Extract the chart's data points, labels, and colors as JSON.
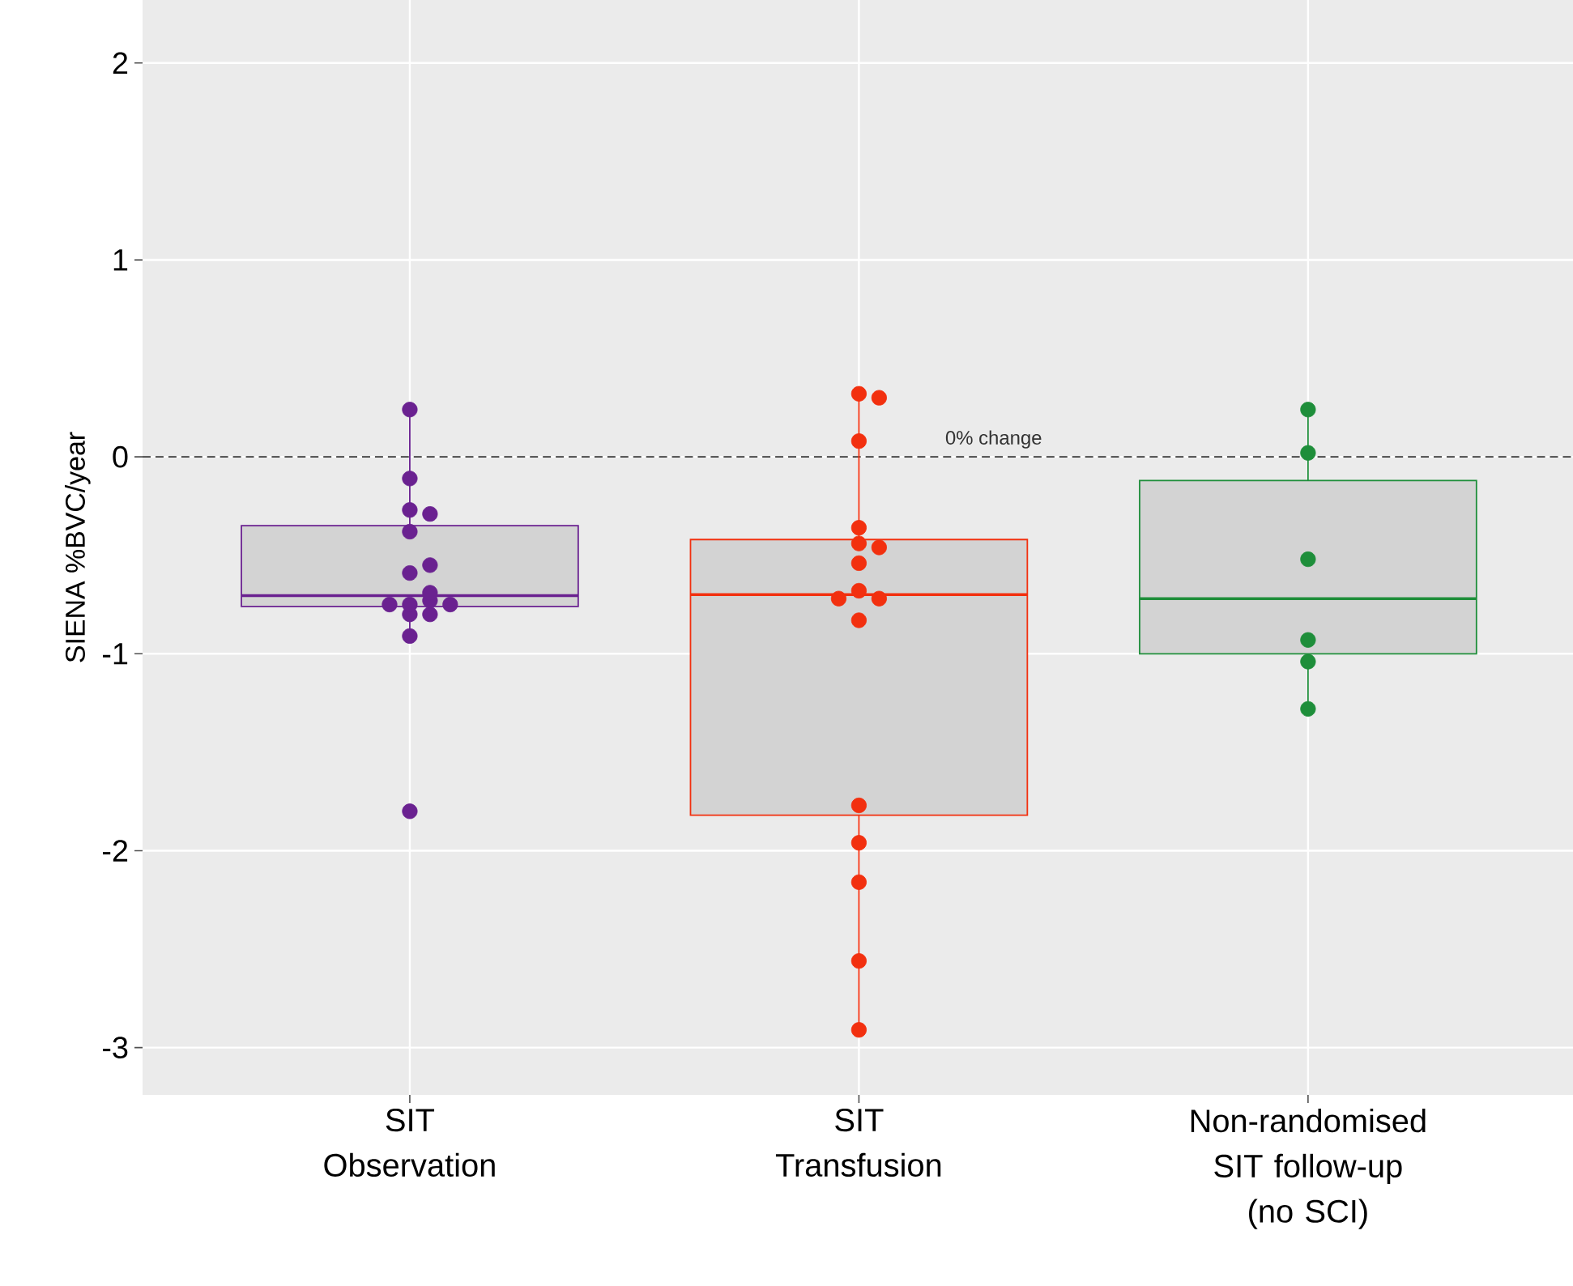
{
  "chart_data": {
    "type": "box",
    "ylabel": "SIENA %BVC/year",
    "categories": [
      "SIT\nObservation",
      "SIT\nTransfusion",
      "Non-randomised\nSIT follow-up\n(no SCI)"
    ],
    "ylim": [
      -3.24,
      2.32
    ],
    "yticks": [
      -3,
      -2,
      -1,
      0,
      1,
      2
    ],
    "grid": true,
    "ref_lines": [
      {
        "axis": "y",
        "value": 0,
        "label": "0% change",
        "color": "#333333",
        "line_style": "dashed"
      }
    ],
    "series": [
      {
        "colors": [
          "#6a2190",
          "#f2300f",
          "#1e8e3a"
        ],
        "boxes": [
          {
            "low": -0.91,
            "q1": -0.76,
            "median": -0.705,
            "q3": -0.35,
            "high": 0.24
          },
          {
            "low": -2.91,
            "q1": -1.82,
            "median": -0.7,
            "q3": -0.42,
            "high": 0.32
          },
          {
            "low": -1.28,
            "q1": -1.0,
            "median": -0.72,
            "q3": -0.12,
            "high": 0.24
          }
        ]
      },
      {
        "type": "scatter",
        "color": "#6a2190",
        "x": [
          "SIT\nObservation",
          "SIT\nObservation",
          "SIT\nObservation",
          "SIT\nObservation",
          "SIT\nObservation",
          "SIT\nObservation",
          "SIT\nObservation",
          "SIT\nObservation",
          "SIT\nObservation",
          "SIT\nObservation",
          "SIT\nObservation",
          "SIT\nObservation",
          "SIT\nObservation",
          "SIT\nObservation",
          "SIT\nObservation",
          "SIT\nObservation"
        ],
        "values": [
          0.24,
          -0.11,
          -0.27,
          -0.29,
          -0.38,
          -0.59,
          -0.55,
          -0.8,
          -0.75,
          -0.8,
          -0.73,
          -0.69,
          -0.75,
          -0.75,
          -0.91,
          -1.8
        ]
      },
      {
        "type": "scatter",
        "color": "#f2300f",
        "x": [
          "SIT\nTransfusion",
          "SIT\nTransfusion",
          "SIT\nTransfusion",
          "SIT\nTransfusion",
          "SIT\nTransfusion",
          "SIT\nTransfusion",
          "SIT\nTransfusion",
          "SIT\nTransfusion",
          "SIT\nTransfusion",
          "SIT\nTransfusion",
          "SIT\nTransfusion",
          "SIT\nTransfusion",
          "SIT\nTransfusion",
          "SIT\nTransfusion",
          "SIT\nTransfusion",
          "SIT\nTransfusion"
        ],
        "values": [
          0.32,
          0.3,
          0.08,
          -0.36,
          -0.44,
          -0.46,
          -0.54,
          -0.68,
          -0.72,
          -0.72,
          -0.83,
          -1.77,
          -1.96,
          -2.16,
          -2.56,
          -2.91
        ]
      },
      {
        "type": "scatter",
        "color": "#1e8e3a",
        "x": [
          "Non-randomised\nSIT follow-up\n(no SCI)",
          "Non-randomised\nSIT follow-up\n(no SCI)",
          "Non-randomised\nSIT follow-up\n(no SCI)",
          "Non-randomised\nSIT follow-up\n(no SCI)",
          "Non-randomised\nSIT follow-up\n(no SCI)",
          "Non-randomised\nSIT follow-up\n(no SCI)"
        ],
        "values": [
          0.24,
          0.02,
          -0.52,
          -0.93,
          -1.04,
          -1.28
        ]
      }
    ]
  }
}
